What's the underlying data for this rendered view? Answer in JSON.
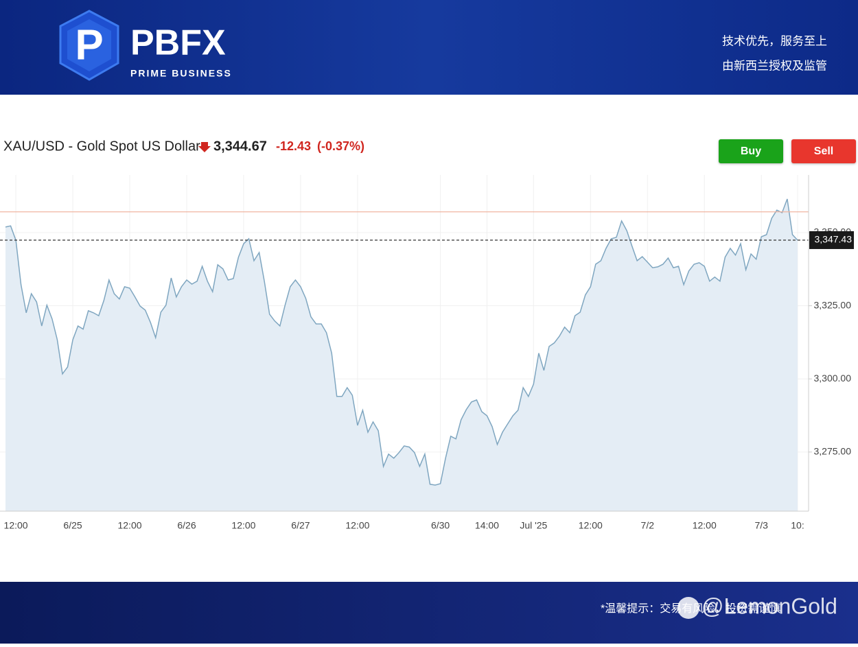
{
  "header": {
    "logo": "PBFX",
    "logo_sub": "PRIME BUSINESS",
    "tagline_1": "技术优先，服务至上",
    "tagline_2": "由新西兰授权及监管"
  },
  "chart_data": {
    "type": "line",
    "title": "XAU/USD - Gold Spot US Dollar",
    "price": "3,344.67",
    "change": "-12.43",
    "change_pct": "(-0.37%)",
    "buttons": [
      "Buy",
      "Sell"
    ],
    "categories": [
      null,
      null,
      "12:00",
      null,
      null,
      null,
      null,
      null,
      null,
      null,
      null,
      null,
      null,
      "6/25",
      null,
      null,
      null,
      null,
      null,
      null,
      null,
      null,
      null,
      null,
      "12:00",
      null,
      null,
      null,
      null,
      null,
      null,
      null,
      null,
      null,
      null,
      "6/26",
      null,
      null,
      null,
      null,
      null,
      null,
      null,
      null,
      null,
      null,
      "12:00",
      null,
      null,
      null,
      null,
      null,
      null,
      null,
      null,
      null,
      null,
      "6/27",
      null,
      null,
      null,
      null,
      null,
      null,
      null,
      null,
      null,
      null,
      "12:00",
      null,
      null,
      null,
      null,
      null,
      null,
      null,
      null,
      null,
      null,
      null,
      null,
      null,
      null,
      null,
      "6/30",
      null,
      null,
      null,
      null,
      null,
      null,
      null,
      null,
      "14:00",
      null,
      null,
      null,
      null,
      null,
      null,
      null,
      null,
      "Jul '25",
      null,
      null,
      null,
      null,
      null,
      null,
      null,
      null,
      null,
      null,
      "12:00",
      null,
      null,
      null,
      null,
      null,
      null,
      null,
      null,
      null,
      null,
      "7/2",
      null,
      null,
      null,
      null,
      null,
      null,
      null,
      null,
      null,
      null,
      "12:00",
      null,
      null,
      null,
      null,
      null,
      null,
      null,
      null,
      null,
      null,
      "7/3",
      null,
      null,
      null,
      null,
      null,
      null,
      "10:"
    ],
    "series": [
      {
        "name": "XAU/USD",
        "color": "#7fa6c0",
        "values": [
          3351.9,
          3352.3,
          3347.4,
          3332.2,
          3322.6,
          3329.1,
          3326.3,
          3318.1,
          3325.2,
          3320.5,
          3313.4,
          3301.7,
          3304.1,
          3313.4,
          3318.1,
          3317.0,
          3323.3,
          3322.6,
          3321.6,
          3326.8,
          3333.8,
          3329.1,
          3327.3,
          3331.5,
          3331.0,
          3328.0,
          3324.9,
          3323.5,
          3319.3,
          3314.1,
          3322.8,
          3325.2,
          3334.5,
          3328.0,
          3331.5,
          3333.8,
          3332.4,
          3333.4,
          3338.5,
          3333.4,
          3329.8,
          3339.0,
          3337.6,
          3333.8,
          3334.3,
          3341.6,
          3346.2,
          3347.9,
          3340.4,
          3343.2,
          3333.4,
          3322.1,
          3319.8,
          3318.1,
          3325.2,
          3331.5,
          3333.8,
          3331.5,
          3327.5,
          3321.2,
          3318.8,
          3318.8,
          3315.8,
          3308.8,
          3294.0,
          3294.0,
          3297.0,
          3294.4,
          3284.1,
          3289.3,
          3281.8,
          3285.3,
          3282.3,
          3270.1,
          3274.3,
          3272.9,
          3274.8,
          3277.1,
          3276.7,
          3274.8,
          3270.1,
          3274.3,
          3264.0,
          3263.7,
          3264.2,
          3272.9,
          3280.4,
          3279.5,
          3286.0,
          3289.5,
          3292.1,
          3292.8,
          3288.8,
          3287.4,
          3283.7,
          3277.6,
          3281.8,
          3284.6,
          3287.4,
          3289.3,
          3297.0,
          3294.0,
          3298.2,
          3308.8,
          3302.9,
          3311.1,
          3312.3,
          3314.6,
          3317.7,
          3315.8,
          3321.6,
          3322.8,
          3328.7,
          3331.5,
          3339.2,
          3340.4,
          3344.6,
          3347.9,
          3348.4,
          3354.0,
          3350.7,
          3345.5,
          3340.4,
          3341.8,
          3339.9,
          3338.0,
          3338.3,
          3339.2,
          3341.3,
          3338.0,
          3338.5,
          3332.2,
          3336.9,
          3339.2,
          3339.7,
          3338.5,
          3333.4,
          3334.8,
          3333.4,
          3341.6,
          3344.6,
          3342.3,
          3346.2,
          3337.3,
          3342.7,
          3340.9,
          3348.6,
          3349.3,
          3354.9,
          3357.7,
          3356.8,
          3361.5,
          3349.3,
          3347.4
        ]
      }
    ],
    "fill_color": "#e4edf5",
    "ylim": [
      3254.8,
      3369.7
    ],
    "yticks": [
      {
        "value": 3275,
        "label": "3,275.00"
      },
      {
        "value": 3300,
        "label": "3,300.00"
      },
      {
        "value": 3325,
        "label": "3,325.00"
      },
      {
        "value": 3350,
        "label": "3,350.00"
      }
    ],
    "current_price": {
      "value": 3347.43,
      "label": "3,347.43"
    },
    "prev_close": 3357.1,
    "grid": true
  },
  "footer": {
    "notice": "*温馨提示：交易有风险，投资需谨慎",
    "watermark": "@LemonGold"
  }
}
